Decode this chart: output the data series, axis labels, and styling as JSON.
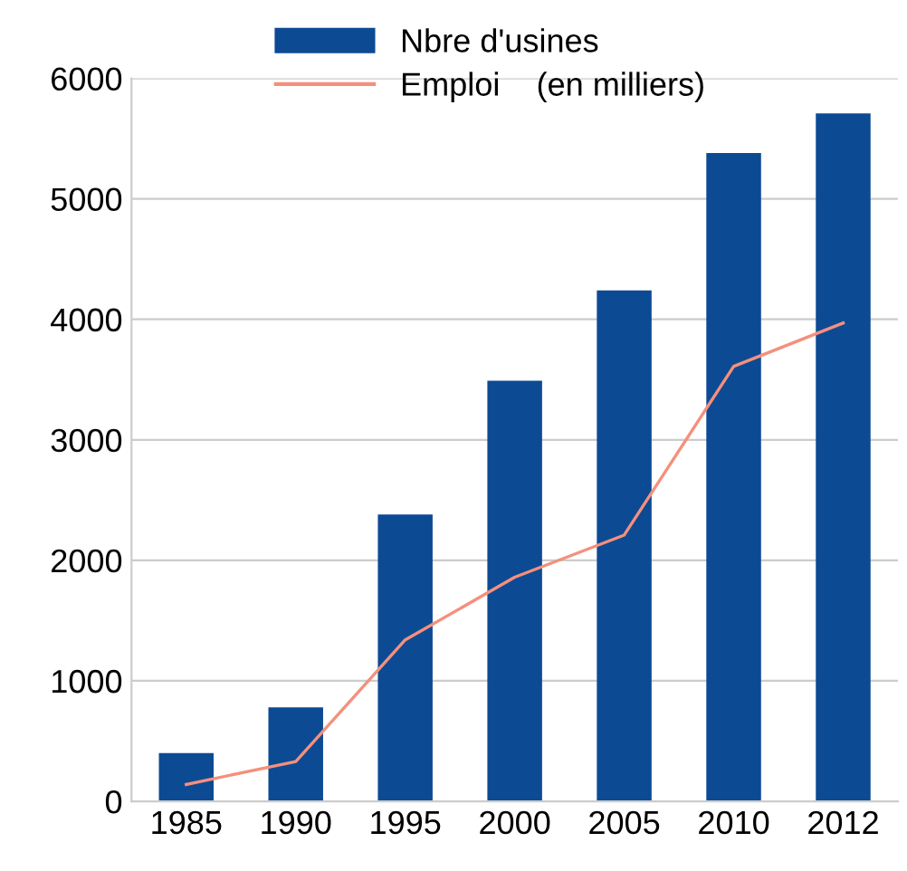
{
  "chart_data": {
    "type": "bar",
    "categories": [
      "1985",
      "1990",
      "1995",
      "2000",
      "2005",
      "2010",
      "2012"
    ],
    "series": [
      {
        "name": "Nbre d'usines",
        "color": "#0d4a94",
        "values": [
          400,
          780,
          2380,
          3490,
          4240,
          5380,
          5710
        ]
      },
      {
        "name": "Emploi    (en milliers)",
        "type": "line",
        "color": "#f4907c",
        "values": [
          140,
          330,
          1340,
          1860,
          2210,
          3610,
          3970
        ]
      }
    ],
    "ylim": [
      0,
      6000
    ],
    "yticks": [
      0,
      1000,
      2000,
      3000,
      4000,
      5000,
      6000
    ],
    "grid": "y",
    "legend": "top left"
  }
}
